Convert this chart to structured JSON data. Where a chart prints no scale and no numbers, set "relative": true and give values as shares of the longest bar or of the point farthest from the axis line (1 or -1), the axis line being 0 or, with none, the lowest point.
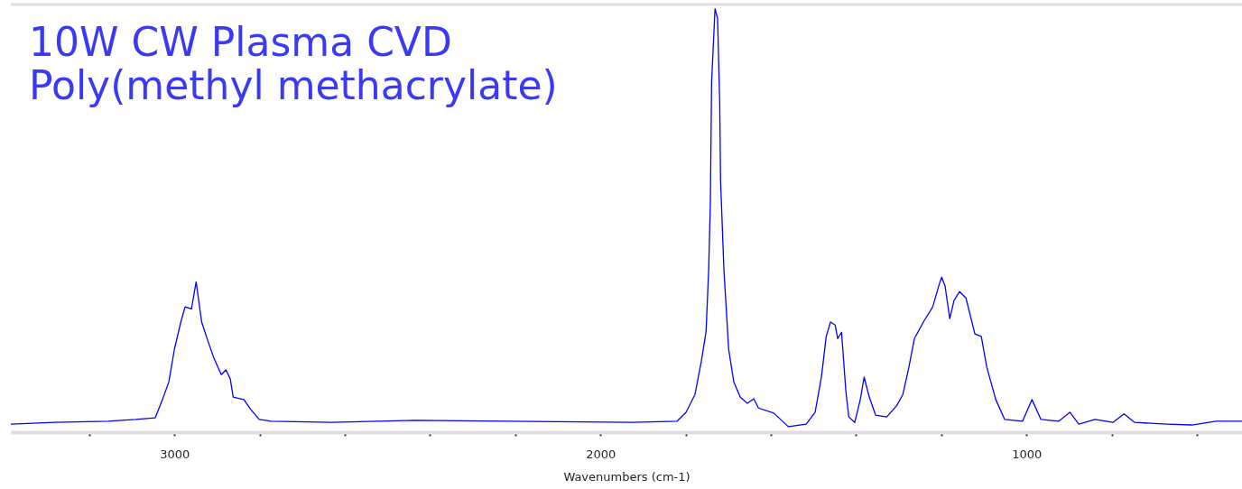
{
  "chart_data": {
    "type": "line",
    "title": "10W CW Plasma CVD\nPoly(methyl methacrylate)",
    "xlabel": "Wavenumbers (cm-1)",
    "relative": true,
    "xlim": [
      3384,
      494
    ],
    "xticks": [
      {
        "value": 3200,
        "label": null
      },
      3000,
      {
        "value": 2800,
        "label": null
      },
      {
        "value": 2600,
        "label": null
      },
      {
        "value": 2400,
        "label": null
      },
      {
        "value": 2200,
        "label": null
      },
      2000,
      {
        "value": 1800,
        "label": null
      },
      {
        "value": 1600,
        "label": null
      },
      {
        "value": 1400,
        "label": null
      },
      {
        "value": 1200,
        "label": null
      },
      1000,
      {
        "value": 800,
        "label": null
      },
      {
        "value": 600,
        "label": null
      }
    ],
    "tick_labels": "x",
    "grid": false,
    "series": [
      {
        "color": "#0000ff",
        "x": [
          3384,
          3282,
          3155,
          3091,
          3045,
          3028,
          3013,
          3000,
          2985,
          2975,
          2960,
          2949,
          2943,
          2936,
          2922,
          2907,
          2890,
          2879,
          2869,
          2862,
          2837,
          2822,
          2801,
          2773,
          2631,
          2434,
          1926,
          1820,
          1799,
          1778,
          1763,
          1752,
          1746,
          1742,
          1739,
          1731,
          1725,
          1720,
          1718,
          1710,
          1699,
          1687,
          1672,
          1655,
          1640,
          1629,
          1593,
          1559,
          1517,
          1496,
          1481,
          1470,
          1460,
          1449,
          1443,
          1434,
          1424,
          1417,
          1403,
          1390,
          1381,
          1369,
          1354,
          1328,
          1305,
          1290,
          1276,
          1263,
          1242,
          1220,
          1206,
          1199,
          1191,
          1180,
          1170,
          1157,
          1142,
          1121,
          1106,
          1093,
          1072,
          1051,
          1009,
          987,
          966,
          924,
          898,
          877,
          839,
          797,
          771,
          746,
          669,
          612,
          555,
          494
        ],
        "values": [
          0.019,
          0.023,
          0.026,
          0.03,
          0.034,
          0.077,
          0.119,
          0.196,
          0.26,
          0.296,
          0.291,
          0.355,
          0.311,
          0.26,
          0.217,
          0.174,
          0.136,
          0.147,
          0.126,
          0.083,
          0.077,
          0.055,
          0.03,
          0.026,
          0.023,
          0.028,
          0.023,
          0.026,
          0.047,
          0.089,
          0.168,
          0.238,
          0.381,
          0.536,
          0.828,
          1.0,
          0.977,
          0.779,
          0.594,
          0.381,
          0.196,
          0.119,
          0.083,
          0.068,
          0.079,
          0.057,
          0.045,
          0.013,
          0.019,
          0.047,
          0.132,
          0.226,
          0.26,
          0.253,
          0.221,
          0.236,
          0.098,
          0.036,
          0.023,
          0.077,
          0.13,
          0.083,
          0.04,
          0.036,
          0.062,
          0.089,
          0.153,
          0.221,
          0.26,
          0.296,
          0.345,
          0.366,
          0.345,
          0.268,
          0.311,
          0.332,
          0.317,
          0.232,
          0.226,
          0.153,
          0.077,
          0.03,
          0.026,
          0.077,
          0.03,
          0.026,
          0.047,
          0.019,
          0.03,
          0.023,
          0.043,
          0.023,
          0.019,
          0.017,
          0.026,
          0.026
        ]
      }
    ]
  }
}
